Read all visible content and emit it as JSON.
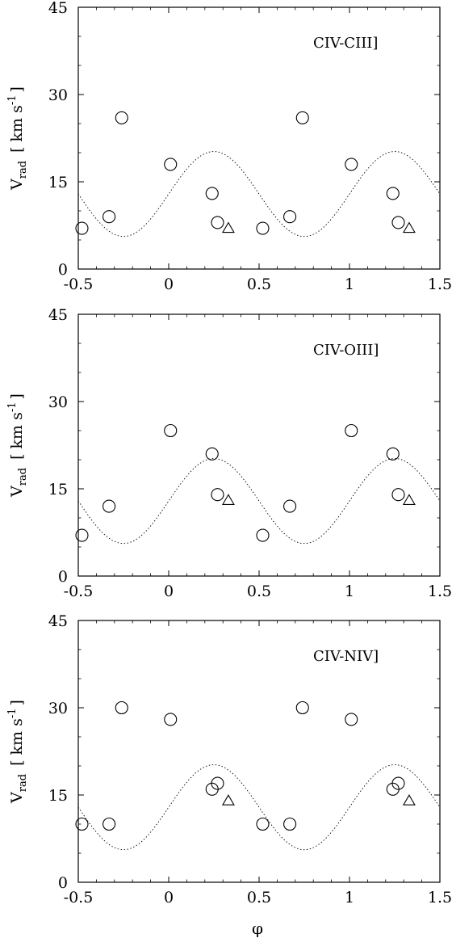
{
  "chart_data": [
    {
      "type": "scatter",
      "label": "CIV-CIII]",
      "xlim": [
        -0.5,
        1.5
      ],
      "ylim": [
        0,
        45
      ],
      "xticks": [
        "-0.5",
        "0",
        "0.5",
        "1",
        "1.5"
      ],
      "yticks": [
        "0",
        "15",
        "30",
        "45"
      ],
      "ylabel": "V",
      "ylabel_sub": "rad",
      "ylabel_unit": "[ km s",
      "ylabel_exp": "-1",
      "ylabel_close": "]",
      "grid": false,
      "circles": [
        [
          -0.48,
          7
        ],
        [
          -0.33,
          9
        ],
        [
          -0.26,
          26
        ],
        [
          0.01,
          18
        ],
        [
          0.24,
          13
        ],
        [
          0.27,
          8
        ],
        [
          0.52,
          7
        ],
        [
          0.67,
          9
        ],
        [
          0.74,
          26
        ],
        [
          1.01,
          18
        ],
        [
          1.24,
          13
        ],
        [
          1.27,
          8
        ]
      ],
      "triangles": [
        [
          0.33,
          7
        ],
        [
          1.33,
          7
        ]
      ],
      "model_curve": {
        "mean": 12.9,
        "amplitude": 7.3,
        "period": 1.0,
        "peak_phase": 0.25
      }
    },
    {
      "type": "scatter",
      "label": "CIV-OIII]",
      "xlim": [
        -0.5,
        1.5
      ],
      "ylim": [
        0,
        45
      ],
      "xticks": [
        "-0.5",
        "0",
        "0.5",
        "1",
        "1.5"
      ],
      "yticks": [
        "0",
        "15",
        "30",
        "45"
      ],
      "ylabel": "V",
      "ylabel_sub": "rad",
      "ylabel_unit": "[ km s",
      "ylabel_exp": "-1",
      "ylabel_close": "]",
      "grid": false,
      "circles": [
        [
          -0.48,
          7
        ],
        [
          -0.33,
          12
        ],
        [
          0.01,
          25
        ],
        [
          0.24,
          21
        ],
        [
          0.27,
          14
        ],
        [
          0.52,
          7
        ],
        [
          0.67,
          12
        ],
        [
          1.01,
          25
        ],
        [
          1.24,
          21
        ],
        [
          1.27,
          14
        ]
      ],
      "triangles": [
        [
          0.33,
          13
        ],
        [
          1.33,
          13
        ]
      ],
      "model_curve": {
        "mean": 12.9,
        "amplitude": 7.3,
        "period": 1.0,
        "peak_phase": 0.25
      }
    },
    {
      "type": "scatter",
      "label": "CIV-NIV]",
      "xlim": [
        -0.5,
        1.5
      ],
      "ylim": [
        0,
        45
      ],
      "xticks": [
        "-0.5",
        "0",
        "0.5",
        "1",
        "1.5"
      ],
      "yticks": [
        "0",
        "15",
        "30",
        "45"
      ],
      "ylabel": "V",
      "ylabel_sub": "rad",
      "ylabel_unit": "[ km s",
      "ylabel_exp": "-1",
      "ylabel_close": "]",
      "grid": false,
      "circles": [
        [
          -0.48,
          10
        ],
        [
          -0.33,
          10
        ],
        [
          -0.26,
          30
        ],
        [
          0.01,
          28
        ],
        [
          0.24,
          16
        ],
        [
          0.27,
          17
        ],
        [
          0.52,
          10
        ],
        [
          0.67,
          10
        ],
        [
          0.74,
          30
        ],
        [
          1.01,
          28
        ],
        [
          1.24,
          16
        ],
        [
          1.27,
          17
        ]
      ],
      "triangles": [
        [
          0.33,
          14
        ],
        [
          1.33,
          14
        ]
      ],
      "model_curve": {
        "mean": 12.9,
        "amplitude": 7.3,
        "period": 1.0,
        "peak_phase": 0.25
      },
      "xlabel": "φ"
    }
  ]
}
